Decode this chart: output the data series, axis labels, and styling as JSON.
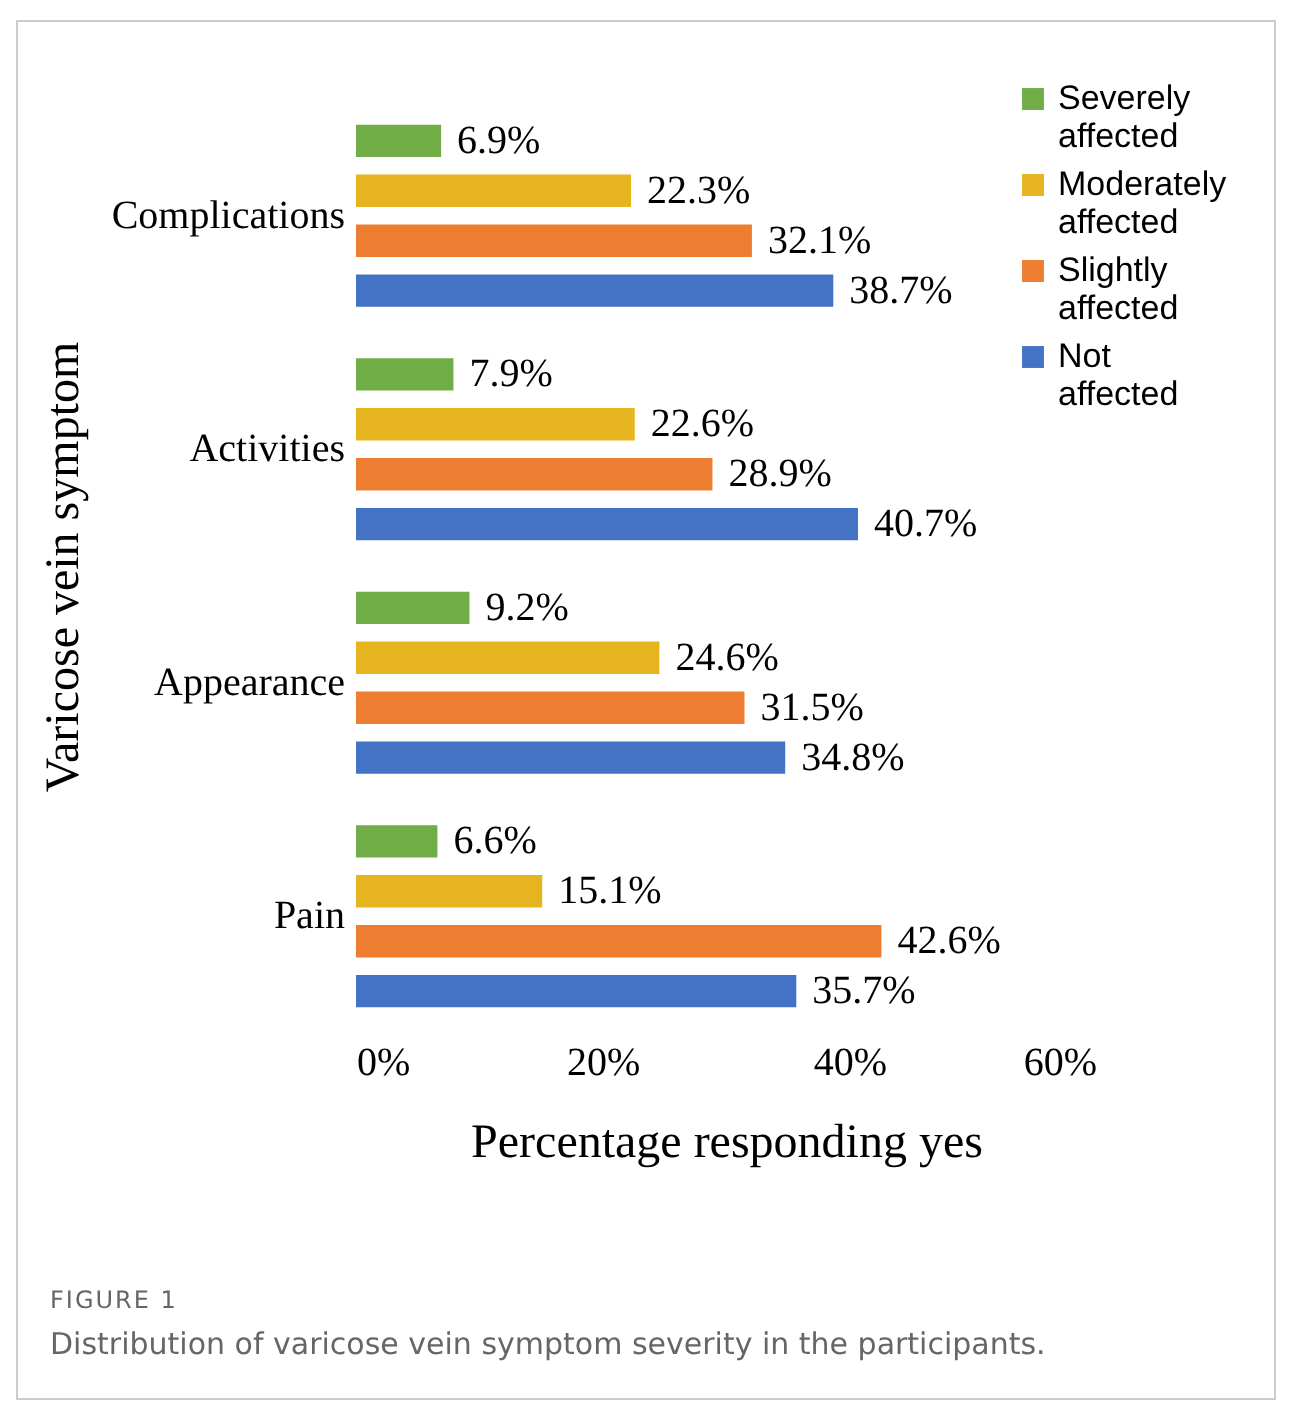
{
  "chart_data": {
    "type": "bar",
    "orientation": "horizontal",
    "xlabel": "Percentage responding yes",
    "ylabel": "Varicose vein symptom",
    "categories": [
      "Complications",
      "Activities",
      "Appearance",
      "Pain"
    ],
    "series": [
      {
        "name": "Severely affected",
        "color": "#70ad47",
        "values": [
          6.9,
          7.9,
          9.2,
          6.6
        ],
        "value_labels": [
          "6.9%",
          "7.9%",
          "9.2%",
          "6.6%"
        ]
      },
      {
        "name": "Moderately affected",
        "color": "#e6b41e",
        "values": [
          22.3,
          22.6,
          24.6,
          15.1
        ],
        "value_labels": [
          "22.3%",
          "22.6%",
          "24.6%",
          "15.1%"
        ]
      },
      {
        "name": "Slightly affected",
        "color": "#ed7d31",
        "values": [
          32.1,
          28.9,
          31.5,
          42.6
        ],
        "value_labels": [
          "32.1%",
          "28.9%",
          "31.5%",
          "42.6%"
        ]
      },
      {
        "name": "Not affected",
        "color": "#4472c4",
        "values": [
          38.7,
          40.7,
          34.8,
          35.7
        ],
        "value_labels": [
          "38.7%",
          "40.7%",
          "34.8%",
          "35.7%"
        ]
      }
    ],
    "xlim": [
      0,
      60
    ],
    "xticks": [
      {
        "value": 0,
        "label": "0%"
      },
      {
        "value": 20,
        "label": "20%"
      },
      {
        "value": 40,
        "label": "40%"
      },
      {
        "value": 60,
        "label": "60%"
      }
    ],
    "grid": false,
    "legend": "top right",
    "annotations": [
      "FIGURE 1",
      "Distribution of varicose vein symptom severity in the participants."
    ]
  }
}
